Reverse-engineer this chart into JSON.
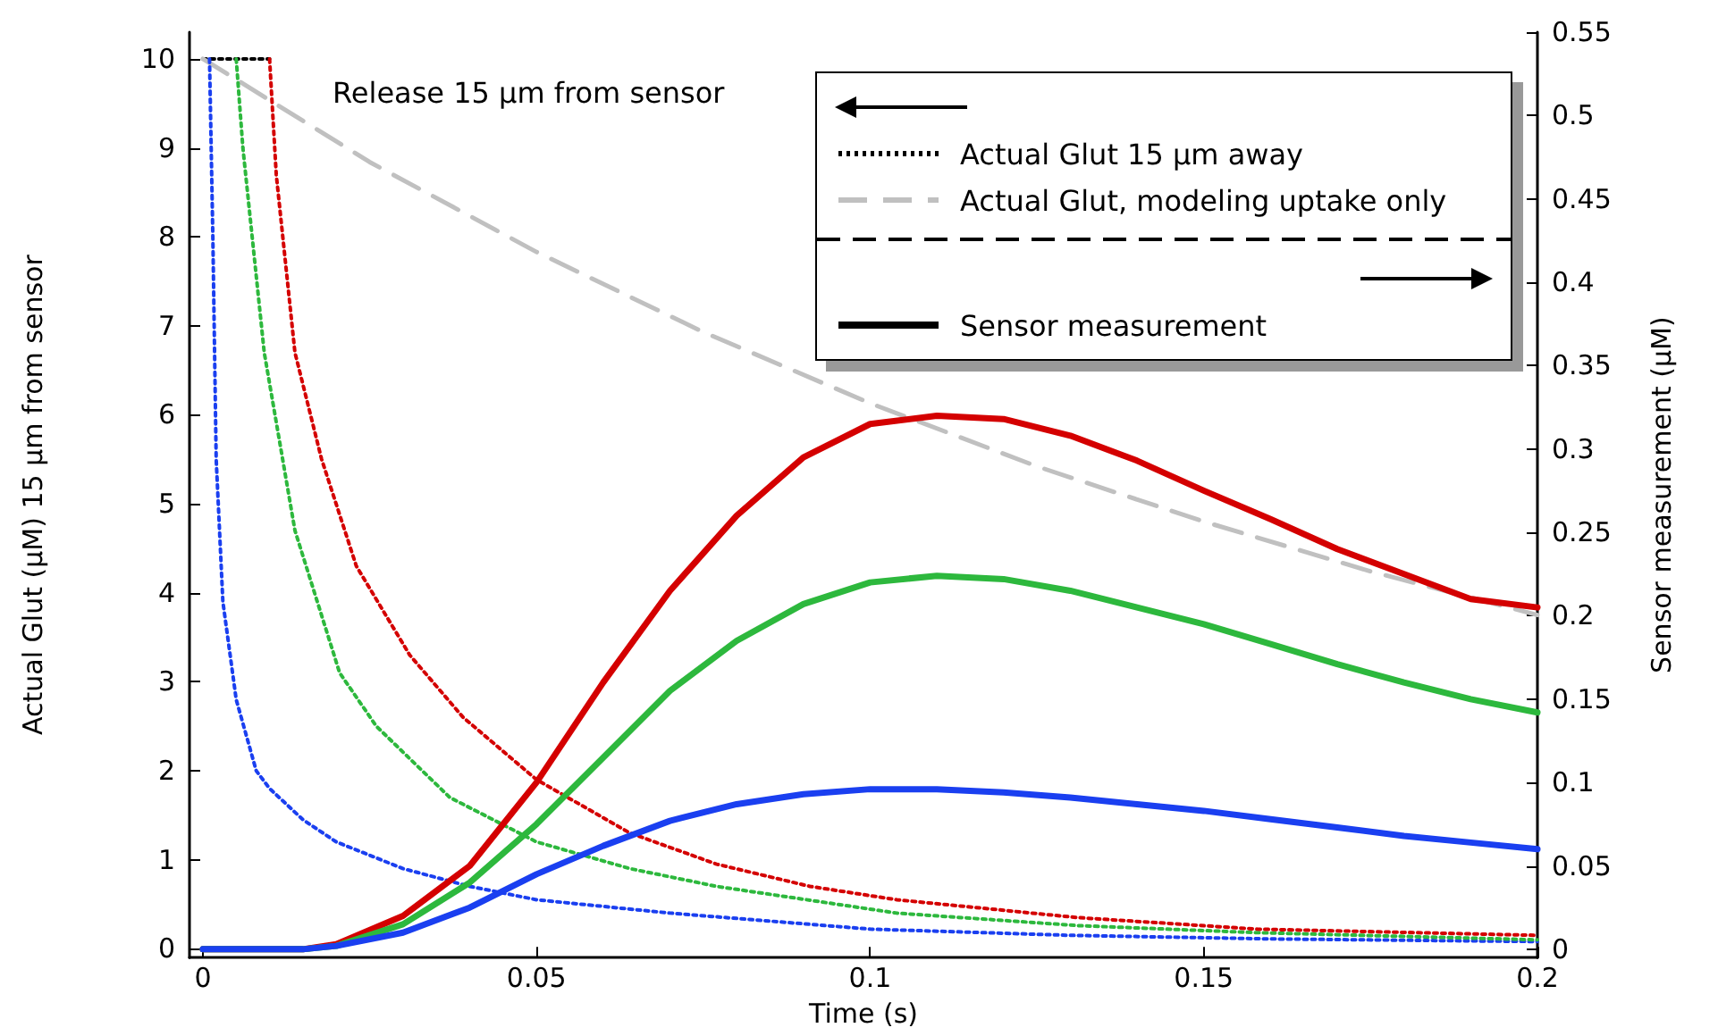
{
  "chart_data": {
    "type": "line",
    "xlabel": "Time (s)",
    "ylabel": "Actual Glut (µM) 15 µm from sensor",
    "y2label": "Sensor measurement (µM)",
    "xlim": [
      -0.002,
      0.2
    ],
    "xticks": [
      0,
      0.05,
      0.1,
      0.15,
      0.2
    ],
    "ylim": [
      -0.1,
      10.3
    ],
    "yticks": [
      0,
      1,
      2,
      3,
      4,
      5,
      6,
      7,
      8,
      9,
      10
    ],
    "y2lim": [
      -0.005,
      0.55
    ],
    "y2ticks": [
      0,
      0.05,
      0.1,
      0.15,
      0.2,
      0.25,
      0.3,
      0.35,
      0.4,
      0.45,
      0.5,
      0.55
    ],
    "legend": "top right",
    "marker": "none",
    "annotations": [
      "Release 15 µm from sensor",
      "Sensor measurement"
    ],
    "series": [
      {
        "name": "Actual Glut 15 µm away",
        "color": "#000000",
        "line_style": "dotted",
        "x": [
          0,
          0.01
        ],
        "values": [
          10,
          10
        ]
      },
      {
        "name": "Actual Glut, modeling uptake only",
        "color": "#c0c0c0",
        "line_style": "dashed",
        "x": [
          0,
          0.025,
          0.05,
          0.075,
          0.1,
          0.125,
          0.15,
          0.175,
          0.2
        ],
        "values": [
          10,
          8.84,
          7.83,
          6.93,
          6.13,
          5.42,
          4.8,
          4.24,
          3.75
        ]
      },
      {
        "color": "#1a3ff0",
        "line_style": "dotted",
        "x": [
          0.001,
          0.0015,
          0.002,
          0.003,
          0.005,
          0.008,
          0.01,
          0.015,
          0.02,
          0.03,
          0.04,
          0.05,
          0.07,
          0.1,
          0.13,
          0.16,
          0.2
        ],
        "values": [
          10,
          8,
          5.5,
          3.9,
          2.8,
          2.0,
          1.8,
          1.45,
          1.2,
          0.9,
          0.7,
          0.55,
          0.4,
          0.22,
          0.15,
          0.11,
          0.08
        ]
      },
      {
        "color": "#2db83d",
        "line_style": "dotted",
        "x": [
          0.005,
          0.006,
          0.0092,
          0.0138,
          0.0205,
          0.026,
          0.037,
          0.05,
          0.064,
          0.077,
          0.104,
          0.131,
          0.158,
          0.2
        ],
        "values": [
          10,
          9,
          6.7,
          4.7,
          3.1,
          2.5,
          1.7,
          1.2,
          0.9,
          0.7,
          0.4,
          0.26,
          0.18,
          0.1
        ]
      },
      {
        "color": "#d40000",
        "line_style": "dotted",
        "x": [
          0.01,
          0.011,
          0.0138,
          0.0178,
          0.023,
          0.031,
          0.039,
          0.05,
          0.064,
          0.077,
          0.091,
          0.104,
          0.131,
          0.158,
          0.2
        ],
        "values": [
          10,
          8.7,
          6.7,
          5.5,
          4.3,
          3.3,
          2.6,
          1.9,
          1.3,
          0.95,
          0.7,
          0.55,
          0.35,
          0.22,
          0.15
        ]
      },
      {
        "color": "#d40000",
        "line_style": "solid",
        "axis": "y2",
        "x": [
          0,
          0.015,
          0.02,
          0.03,
          0.04,
          0.05,
          0.06,
          0.07,
          0.08,
          0.09,
          0.1,
          0.11,
          0.12,
          0.13,
          0.14,
          0.15,
          0.16,
          0.17,
          0.18,
          0.19,
          0.2
        ],
        "values": [
          0,
          0,
          0.003,
          0.02,
          0.05,
          0.1,
          0.16,
          0.215,
          0.26,
          0.295,
          0.315,
          0.32,
          0.318,
          0.308,
          0.293,
          0.275,
          0.258,
          0.24,
          0.225,
          0.21,
          0.205
        ]
      },
      {
        "color": "#2db83d",
        "line_style": "solid",
        "axis": "y2",
        "x": [
          0,
          0.015,
          0.02,
          0.03,
          0.04,
          0.05,
          0.06,
          0.07,
          0.08,
          0.09,
          0.1,
          0.11,
          0.12,
          0.13,
          0.14,
          0.15,
          0.16,
          0.17,
          0.18,
          0.19,
          0.2
        ],
        "values": [
          0,
          0,
          0.002,
          0.015,
          0.04,
          0.075,
          0.115,
          0.155,
          0.185,
          0.207,
          0.22,
          0.224,
          0.222,
          0.215,
          0.205,
          0.195,
          0.183,
          0.171,
          0.16,
          0.15,
          0.142
        ]
      },
      {
        "color": "#1a3ff0",
        "line_style": "solid",
        "axis": "y2",
        "x": [
          0,
          0.015,
          0.02,
          0.03,
          0.04,
          0.05,
          0.06,
          0.07,
          0.08,
          0.09,
          0.1,
          0.11,
          0.12,
          0.13,
          0.14,
          0.15,
          0.16,
          0.17,
          0.18,
          0.19,
          0.2
        ],
        "values": [
          0,
          0,
          0.002,
          0.01,
          0.025,
          0.045,
          0.062,
          0.077,
          0.087,
          0.093,
          0.096,
          0.096,
          0.094,
          0.091,
          0.087,
          0.083,
          0.078,
          0.073,
          0.068,
          0.064,
          0.06
        ]
      }
    ]
  }
}
